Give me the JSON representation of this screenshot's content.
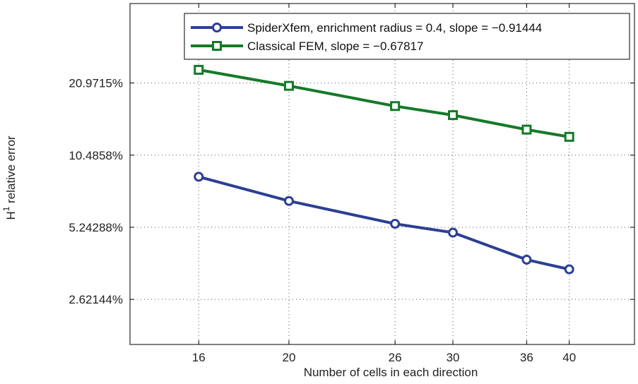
{
  "chart_data": {
    "type": "line",
    "title": "",
    "xlabel": "Number of cells in each direction",
    "ylabel_main": "H",
    "ylabel_sup": "1",
    "ylabel_rest": " relative error",
    "x_scale": "log",
    "y_scale": "log",
    "xlim": [
      13.5,
      47
    ],
    "ylim": [
      1.7,
      45
    ],
    "x_ticks": [
      16,
      20,
      26,
      30,
      36,
      40
    ],
    "x_tick_labels": [
      "16",
      "20",
      "26",
      "30",
      "36",
      "40"
    ],
    "y_ticks": [
      2.62144,
      5.24288,
      10.4858,
      20.9715
    ],
    "y_tick_labels": [
      "2.62144%",
      "5.24288%",
      "10.4858%",
      "20.9715%"
    ],
    "grid": "dotted",
    "legend_position": "top-right",
    "series": [
      {
        "name": "SpiderXfem, enrichment radius = 0.4, slope = −0.91444",
        "marker": "circle",
        "color": "#2b3f93",
        "x": [
          16,
          20,
          26,
          30,
          36,
          40
        ],
        "y": [
          8.52,
          6.75,
          5.42,
          4.98,
          3.84,
          3.5
        ]
      },
      {
        "name": "Classical FEM, slope = −0.67817",
        "marker": "square",
        "color": "#157a28",
        "x": [
          16,
          20,
          26,
          30,
          36,
          40
        ],
        "y": [
          23.8,
          20.4,
          16.8,
          15.4,
          13.4,
          12.5
        ]
      }
    ]
  }
}
